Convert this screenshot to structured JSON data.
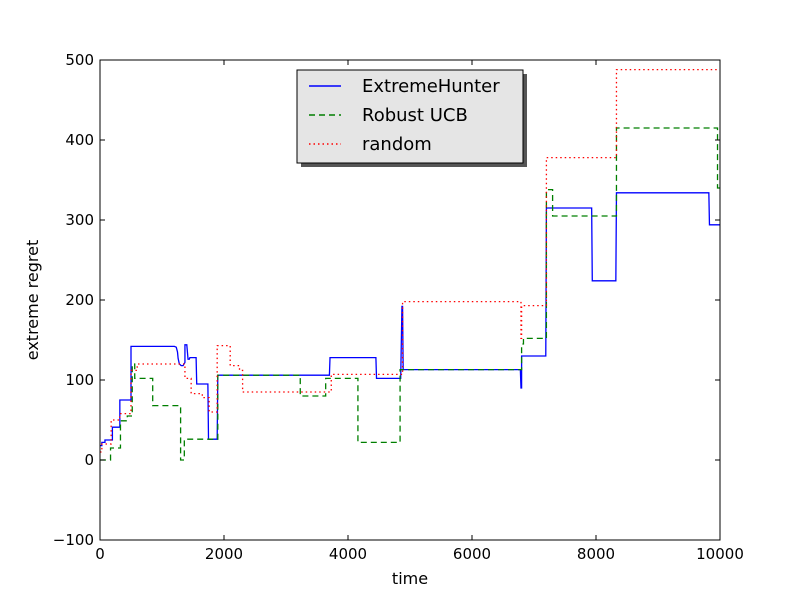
{
  "chart_data": {
    "type": "line",
    "title": "",
    "xlabel": "time",
    "ylabel": "extreme regret",
    "xlim": [
      0,
      10000
    ],
    "ylim": [
      -100,
      500
    ],
    "xticks": [
      0,
      2000,
      4000,
      6000,
      8000,
      10000
    ],
    "yticks": [
      -100,
      0,
      100,
      200,
      300,
      400,
      500
    ],
    "xtick_labels": [
      "0",
      "2000",
      "4000",
      "6000",
      "8000",
      "10000"
    ],
    "ytick_labels": [
      "−100",
      "0",
      "100",
      "200",
      "300",
      "400",
      "500"
    ],
    "grid": false,
    "legend_position": "top-center",
    "series": [
      {
        "name": "ExtremeHunter",
        "color": "#0000ff",
        "style": "solid",
        "x": [
          0,
          30,
          30,
          80,
          80,
          200,
          200,
          320,
          320,
          500,
          500,
          1200,
          1230,
          1250,
          1260,
          1280,
          1310,
          1340,
          1370,
          1370,
          1400,
          1420,
          1440,
          1450,
          1550,
          1560,
          1740,
          1750,
          1890,
          1900,
          3700,
          3710,
          4450,
          4460,
          4850,
          4870,
          4880,
          4890,
          6780,
          6790,
          6800,
          6800,
          7190,
          7200,
          7930,
          7940,
          8320,
          8330,
          9820,
          9830,
          10000
        ],
        "y": [
          18,
          18,
          22,
          22,
          25,
          25,
          41,
          41,
          75,
          75,
          142,
          142,
          141,
          135,
          127,
          120,
          118,
          118,
          122,
          144,
          144,
          126,
          126,
          128,
          128,
          95,
          95,
          26,
          26,
          106,
          106,
          128,
          128,
          102,
          102,
          192,
          192,
          113,
          113,
          90,
          90,
          130,
          130,
          315,
          315,
          224,
          224,
          334,
          334,
          294,
          294
        ]
      },
      {
        "name": "Robust UCB",
        "color": "#007f00",
        "style": "dashed",
        "x": [
          0,
          60,
          60,
          170,
          170,
          330,
          330,
          440,
          440,
          520,
          520,
          560,
          560,
          850,
          850,
          1250,
          1250,
          1300,
          1300,
          1360,
          1360,
          1700,
          1700,
          1900,
          1900,
          3230,
          3230,
          3640,
          3640,
          4160,
          4160,
          4840,
          4840,
          6800,
          6800,
          6830,
          6830,
          7200,
          7200,
          7300,
          7300,
          8330,
          8330,
          9960,
          9960,
          10000
        ],
        "y": [
          0,
          0,
          0,
          0,
          15,
          15,
          49,
          49,
          55,
          55,
          120,
          120,
          102,
          102,
          68,
          68,
          68,
          68,
          0,
          0,
          26,
          26,
          26,
          26,
          106,
          106,
          80,
          80,
          102,
          102,
          22,
          22,
          113,
          113,
          145,
          145,
          152,
          152,
          338,
          338,
          305,
          305,
          415,
          415,
          340,
          340
        ]
      },
      {
        "name": "random",
        "color": "#ff0000",
        "style": "dotted",
        "x": [
          0,
          30,
          30,
          180,
          180,
          320,
          320,
          500,
          500,
          600,
          600,
          1270,
          1270,
          1370,
          1370,
          1470,
          1470,
          1650,
          1650,
          1760,
          1760,
          1890,
          1890,
          2100,
          2100,
          2250,
          2250,
          2300,
          2300,
          3300,
          3300,
          3730,
          3730,
          4880,
          4880,
          6790,
          6790,
          6800,
          6800,
          7200,
          7200,
          8330,
          8330,
          10000
        ],
        "y": [
          10,
          10,
          20,
          20,
          50,
          50,
          58,
          58,
          112,
          112,
          120,
          120,
          120,
          120,
          102,
          102,
          83,
          83,
          78,
          78,
          60,
          60,
          143,
          143,
          118,
          118,
          112,
          112,
          85,
          85,
          85,
          85,
          107,
          107,
          198,
          198,
          152,
          152,
          193,
          193,
          378,
          378,
          488,
          488
        ]
      }
    ]
  }
}
